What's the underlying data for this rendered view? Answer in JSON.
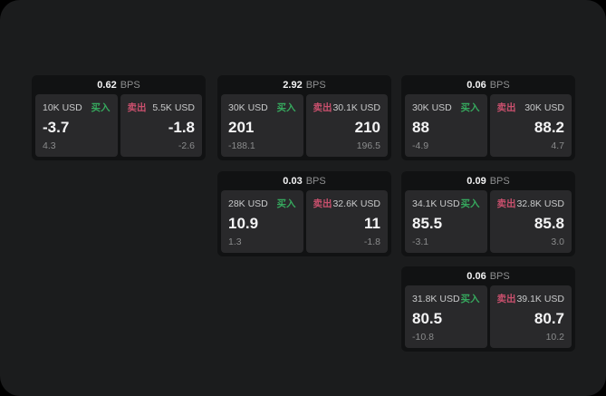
{
  "labels": {
    "bps_unit": "BPS",
    "buy": "买入",
    "sell": "卖出"
  },
  "colors": {
    "outside_background": "#000000",
    "page_background": "#1b1c1d",
    "card_background": "#111213",
    "panel_background": "#29292b",
    "buy_green": "#36a95e",
    "sell_red": "#c9506d",
    "primary_text": "#f4f4f5",
    "muted_text": "#8e8f90",
    "unit_text": "#c9cacb"
  },
  "cards": [
    {
      "bps": "0.62",
      "buy": {
        "amount": "10K USD",
        "price": "-3.7",
        "delta": "4.3"
      },
      "sell": {
        "amount": "5.5K USD",
        "price": "-1.8",
        "delta": "-2.6"
      }
    },
    {
      "bps": "2.92",
      "buy": {
        "amount": "30K USD",
        "price": "201",
        "delta": "-188.1"
      },
      "sell": {
        "amount": "30.1K USD",
        "price": "210",
        "delta": "196.5"
      }
    },
    {
      "bps": "0.06",
      "buy": {
        "amount": "30K USD",
        "price": "88",
        "delta": "-4.9"
      },
      "sell": {
        "amount": "30K USD",
        "price": "88.2",
        "delta": "4.7"
      }
    },
    {
      "bps": "0.03",
      "buy": {
        "amount": "28K USD",
        "price": "10.9",
        "delta": "1.3"
      },
      "sell": {
        "amount": "32.6K USD",
        "price": "11",
        "delta": "-1.8"
      }
    },
    {
      "bps": "0.09",
      "buy": {
        "amount": "34.1K USD",
        "price": "85.5",
        "delta": "-3.1"
      },
      "sell": {
        "amount": "32.8K USD",
        "price": "85.8",
        "delta": "3.0"
      }
    },
    {
      "bps": "0.06",
      "buy": {
        "amount": "31.8K USD",
        "price": "80.5",
        "delta": "-10.8"
      },
      "sell": {
        "amount": "39.1K USD",
        "price": "80.7",
        "delta": "10.2"
      }
    }
  ]
}
